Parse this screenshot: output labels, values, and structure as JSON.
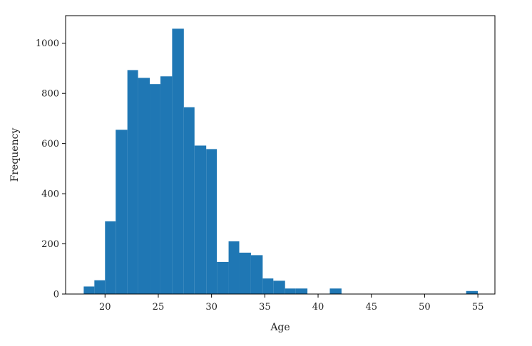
{
  "chart_data": {
    "type": "bar",
    "xlabel": "Age",
    "ylabel": "Frequency",
    "xlim": [
      16.3,
      56.6
    ],
    "ylim": [
      0,
      1110
    ],
    "xticks": [
      20,
      25,
      30,
      35,
      40,
      45,
      50,
      55
    ],
    "yticks": [
      0,
      200,
      400,
      600,
      800,
      1000
    ],
    "bar_color": "#1f77b4",
    "bins": [
      {
        "x0": 18.0,
        "x1": 19.0,
        "count": 30
      },
      {
        "x0": 19.0,
        "x1": 20.0,
        "count": 55
      },
      {
        "x0": 20.0,
        "x1": 21.0,
        "count": 290
      },
      {
        "x0": 21.0,
        "x1": 22.1,
        "count": 655
      },
      {
        "x0": 22.1,
        "x1": 23.1,
        "count": 893
      },
      {
        "x0": 23.1,
        "x1": 24.2,
        "count": 862
      },
      {
        "x0": 24.2,
        "x1": 25.2,
        "count": 837
      },
      {
        "x0": 25.2,
        "x1": 26.3,
        "count": 868
      },
      {
        "x0": 26.3,
        "x1": 27.4,
        "count": 1058
      },
      {
        "x0": 27.4,
        "x1": 28.4,
        "count": 745
      },
      {
        "x0": 28.4,
        "x1": 29.5,
        "count": 592
      },
      {
        "x0": 29.5,
        "x1": 30.5,
        "count": 578
      },
      {
        "x0": 30.5,
        "x1": 31.6,
        "count": 128
      },
      {
        "x0": 31.6,
        "x1": 32.6,
        "count": 210
      },
      {
        "x0": 32.6,
        "x1": 33.7,
        "count": 165
      },
      {
        "x0": 33.7,
        "x1": 34.8,
        "count": 155
      },
      {
        "x0": 34.8,
        "x1": 35.8,
        "count": 62
      },
      {
        "x0": 35.8,
        "x1": 36.9,
        "count": 53
      },
      {
        "x0": 36.9,
        "x1": 37.9,
        "count": 22
      },
      {
        "x0": 37.9,
        "x1": 39.0,
        "count": 22
      },
      {
        "x0": 41.1,
        "x1": 42.2,
        "count": 22
      },
      {
        "x0": 53.9,
        "x1": 55.0,
        "count": 12
      }
    ]
  }
}
